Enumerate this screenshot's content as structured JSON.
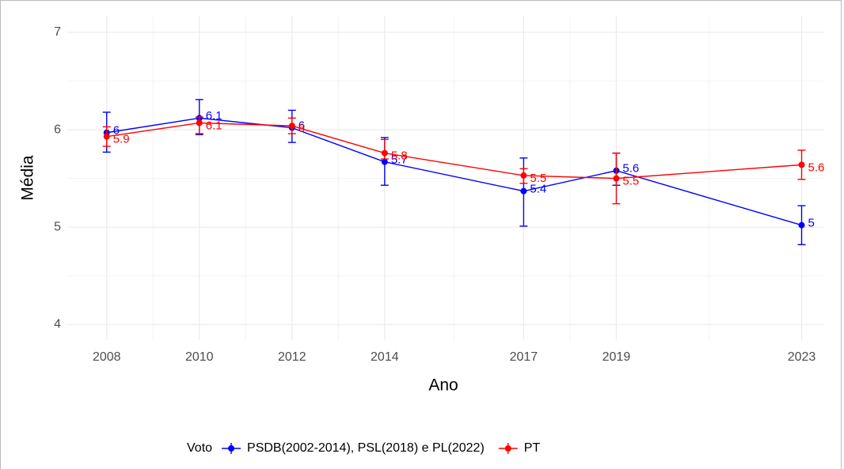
{
  "chart_data": {
    "type": "line",
    "x_label": "Ano",
    "y_label": "Média",
    "x": [
      2008,
      2010,
      2012,
      2014,
      2017,
      2019,
      2023
    ],
    "series": [
      {
        "name": "PSDB(2002-2014), PSL(2018) e PL(2022)",
        "color": "#0000ff",
        "values": [
          5.97,
          6.12,
          6.02,
          5.67,
          5.37,
          5.58,
          5.02
        ],
        "lower": [
          5.77,
          5.95,
          5.87,
          5.43,
          5.01,
          5.43,
          4.82
        ],
        "upper": [
          6.18,
          6.31,
          6.2,
          5.92,
          5.71,
          5.76,
          5.22
        ],
        "value_labels": [
          "6",
          "6.1",
          "6",
          "5.7",
          "5.4",
          "5.6",
          "5"
        ]
      },
      {
        "name": "PT",
        "color": "#ff0000",
        "values": [
          5.93,
          6.07,
          6.04,
          5.76,
          5.53,
          5.5,
          5.64
        ],
        "lower": [
          5.83,
          5.96,
          5.96,
          5.7,
          5.45,
          5.24,
          5.49
        ],
        "upper": [
          6.03,
          6.13,
          6.12,
          5.9,
          5.6,
          5.76,
          5.79
        ],
        "value_labels": [
          "5.9",
          "6.1",
          "6",
          "5.8",
          "5.5",
          "5.5",
          "5.6"
        ]
      }
    ],
    "legend_title": "Voto",
    "legend_position": "bottom",
    "xlim": [
      2007.15,
      2023.47
    ],
    "xticks": [
      2008,
      2010,
      2012,
      2014,
      2017,
      2019,
      2023
    ],
    "ylim": [
      3.84,
      7.17
    ],
    "yticks": [
      4,
      5,
      6,
      7
    ],
    "grid": true
  }
}
